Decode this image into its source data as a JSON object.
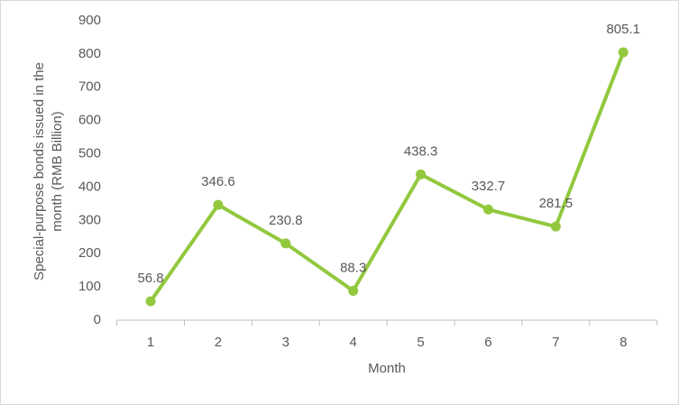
{
  "chart_data": {
    "type": "line",
    "categories": [
      "1",
      "2",
      "3",
      "4",
      "5",
      "6",
      "7",
      "8"
    ],
    "values": [
      56.8,
      346.6,
      230.8,
      88.3,
      438.3,
      332.7,
      281.5,
      805.1
    ],
    "color": "#92c83e",
    "ylim": [
      0,
      900
    ],
    "yticks": [
      0,
      100,
      200,
      300,
      400,
      500,
      600,
      700,
      800,
      900
    ],
    "x_label": "Month",
    "y_label": [
      "Special-purpose bonds issued in the",
      "month (RMB Billion)"
    ],
    "grid": false
  }
}
